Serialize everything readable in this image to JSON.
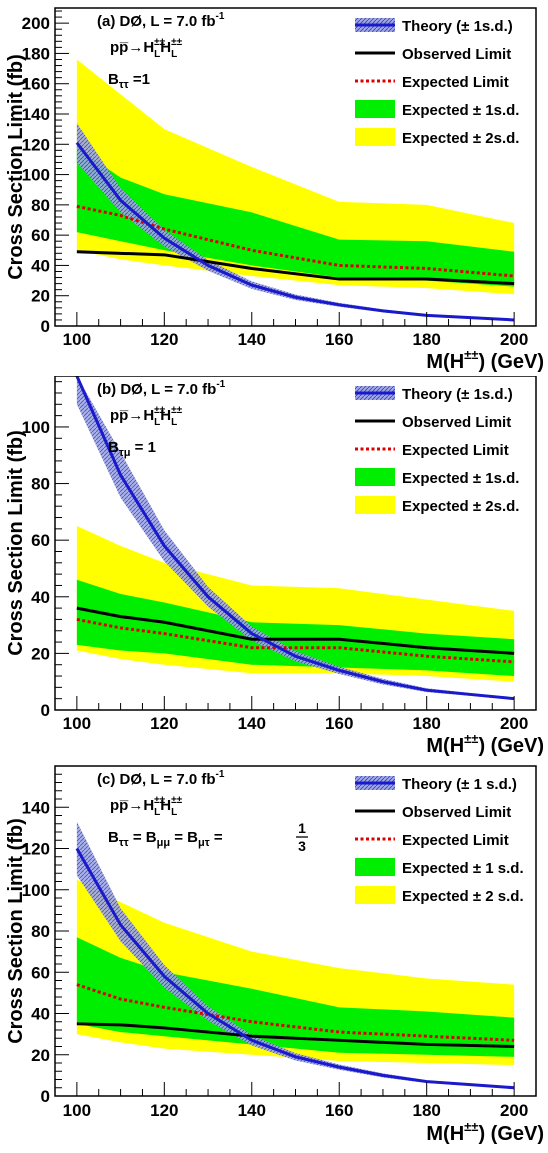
{
  "chart_data": [
    {
      "type": "line",
      "panel": "a",
      "title": "(a) DØ, L = 7.0 fb",
      "title_sup": "-1",
      "process": "pp̅→H",
      "process_tail": "H",
      "pm": "±±",
      "L": "L",
      "branching": "B",
      "branching_sub": "ττ",
      "branching_val": "=1",
      "xlabel": "M(H",
      "xlabel_tail": ") (GeV)",
      "ylabel": "Cross Section Limit (fb)",
      "xlim": [
        95,
        205
      ],
      "ylim": [
        0,
        210
      ],
      "xticks": [
        100,
        120,
        140,
        160,
        180,
        200
      ],
      "yticks": [
        0,
        20,
        40,
        60,
        80,
        100,
        120,
        140,
        160,
        180,
        200
      ],
      "legend": [
        "Theory (± 1s.d.)",
        "Observed Limit",
        "Expected Limit",
        "Expected ± 1s.d.",
        "Expected ± 2s.d."
      ],
      "x": [
        100,
        110,
        120,
        140,
        160,
        180,
        200
      ],
      "observed": [
        49,
        48,
        47,
        38,
        31,
        31,
        28
      ],
      "expected": [
        79,
        73,
        64,
        50,
        40,
        38,
        33
      ],
      "band1_lo": [
        62,
        56,
        50,
        40,
        32,
        30,
        26
      ],
      "band1_hi": [
        118,
        98,
        87,
        75,
        57,
        56,
        49
      ],
      "band2_lo": [
        50,
        44,
        40,
        33,
        27,
        25,
        21
      ],
      "band2_hi": [
        176,
        153,
        130,
        105,
        82,
        80,
        68
      ],
      "theory_x": [
        100,
        110,
        120,
        130,
        140,
        150,
        160,
        170,
        180,
        190,
        200
      ],
      "theory": [
        121,
        83,
        58,
        40,
        27,
        19,
        14,
        10,
        7,
        5.5,
        4
      ],
      "theory_err": [
        13,
        8,
        5.5,
        3.5,
        2.5,
        1.8,
        1.3,
        1,
        0.7,
        0.5,
        0.4
      ]
    },
    {
      "type": "line",
      "panel": "b",
      "title": "(b) DØ, L = 7.0 fb",
      "title_sup": "-1",
      "process": "pp̅→H",
      "process_tail": "H",
      "pm": "±±",
      "L": "L",
      "branching": "B",
      "branching_sub": "τμ",
      "branching_val": "= 1",
      "xlabel": "M(H",
      "xlabel_tail": ") (GeV)",
      "ylabel": "Cross Section Limit (fb)",
      "xlim": [
        95,
        205
      ],
      "ylim": [
        0,
        118
      ],
      "xticks": [
        100,
        120,
        140,
        160,
        180,
        200
      ],
      "yticks": [
        0,
        20,
        40,
        60,
        80,
        100
      ],
      "legend": [
        "Theory (± 1s.d.)",
        "Observed Limit",
        "Expected Limit",
        "Expected ± 1s.d.",
        "Expected ± 2s.d."
      ],
      "x": [
        100,
        110,
        120,
        140,
        160,
        180,
        200
      ],
      "observed": [
        36,
        33,
        31,
        25,
        25,
        22,
        20
      ],
      "expected": [
        32,
        29,
        27,
        22,
        22,
        19,
        17
      ],
      "band1_lo": [
        23,
        21,
        20,
        16,
        15,
        14,
        12
      ],
      "band1_hi": [
        46,
        41,
        38,
        31,
        30,
        27,
        25
      ],
      "band2_lo": [
        21,
        18,
        16,
        13,
        13,
        12,
        10
      ],
      "band2_hi": [
        65,
        58,
        52,
        44,
        43,
        39,
        35
      ],
      "theory_x": [
        100,
        110,
        120,
        130,
        140,
        150,
        160,
        170,
        180,
        190,
        200
      ],
      "theory": [
        121,
        83,
        58,
        40,
        27,
        19,
        14,
        10,
        7,
        5.5,
        4
      ],
      "theory_err": [
        13,
        8,
        5.5,
        3.5,
        2.5,
        1.8,
        1.3,
        1,
        0.7,
        0.5,
        0.4
      ]
    },
    {
      "type": "line",
      "panel": "c",
      "title": "(c) DØ, L = 7.0 fb",
      "title_sup": "-1",
      "process": "pp̅→H",
      "process_tail": "H",
      "pm": "±±",
      "L": "L",
      "branching": "B",
      "branching_sub": "ττ",
      "branching_val": "= B",
      "branching_sub2": "μμ",
      "branching_val2": "= B",
      "branching_sub3": "μτ",
      "branching_val3": "=",
      "frac_num": "1",
      "frac_den": "3",
      "xlabel": "M(H",
      "xlabel_tail": ") (GeV)",
      "ylabel": "Cross Section Limit (fb)",
      "xlim": [
        95,
        205
      ],
      "ylim": [
        0,
        160
      ],
      "xticks": [
        100,
        120,
        140,
        160,
        180,
        200
      ],
      "yticks": [
        0,
        20,
        40,
        60,
        80,
        100,
        120,
        140
      ],
      "legend": [
        "Theory (± 1 s.d.)",
        "Observed Limit",
        "Expected Limit",
        "Expected ± 1 s.d.",
        "Expected ± 2 s.d."
      ],
      "x": [
        100,
        110,
        120,
        140,
        160,
        180,
        200
      ],
      "observed": [
        35,
        34.5,
        33,
        29,
        27,
        25,
        24
      ],
      "expected": [
        54,
        47,
        43,
        36,
        31,
        29,
        27
      ],
      "band1_lo": [
        35,
        31,
        29,
        25,
        21,
        20,
        19
      ],
      "band1_hi": [
        77,
        67,
        60,
        52,
        43,
        41,
        38
      ],
      "band2_lo": [
        30,
        26,
        23,
        20,
        17,
        16,
        15
      ],
      "band2_hi": [
        105,
        94,
        84,
        70,
        62,
        57,
        54
      ],
      "theory_x": [
        100,
        110,
        120,
        130,
        140,
        150,
        160,
        170,
        180,
        190,
        200
      ],
      "theory": [
        120,
        83,
        58,
        40,
        27,
        19,
        14,
        10,
        7,
        5.5,
        4
      ],
      "theory_err": [
        13,
        8,
        5.5,
        3.5,
        2.5,
        1.8,
        1.3,
        1,
        0.7,
        0.5,
        0.4
      ]
    }
  ]
}
